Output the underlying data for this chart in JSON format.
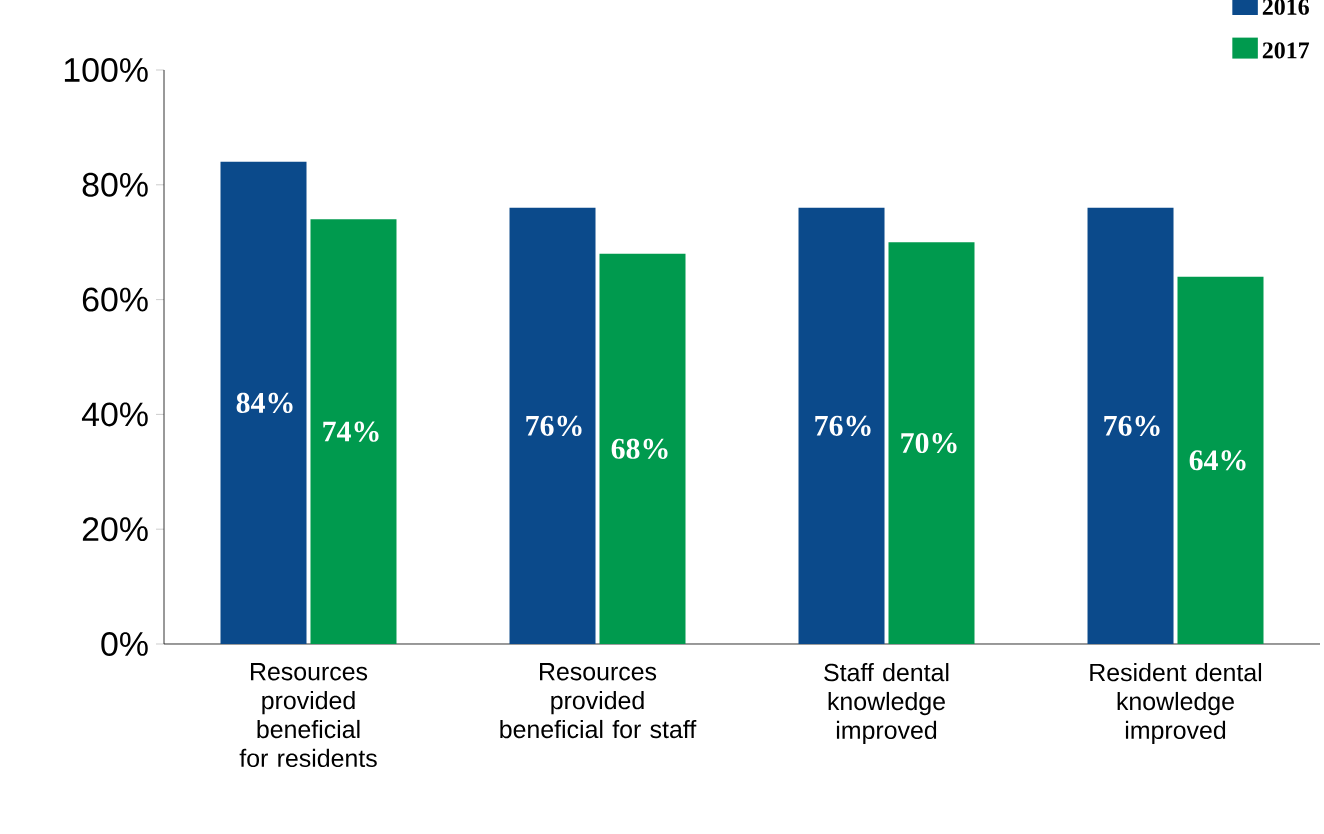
{
  "chart_data": {
    "type": "bar",
    "categories": [
      "Resources provided beneficial for residents",
      "Resources provided beneficial for staff",
      "Staff dental knowledge improved",
      "Resident dental knowledge improved"
    ],
    "series": [
      {
        "name": "2016",
        "color": "#0b4a8b",
        "values": [
          84,
          76,
          76,
          76
        ],
        "value_labels": [
          "84%",
          "76%",
          "76%",
          "76%"
        ]
      },
      {
        "name": "2017",
        "color": "#009a4e",
        "values": [
          74,
          68,
          70,
          64
        ],
        "value_labels": [
          "74%",
          "68%",
          "70%",
          "64%"
        ]
      }
    ],
    "ylim": [
      0,
      100
    ],
    "yticks": [
      {
        "value": 0,
        "label": "0%"
      },
      {
        "value": 20,
        "label": "20%"
      },
      {
        "value": 40,
        "label": "40%"
      },
      {
        "value": 60,
        "label": "60%"
      },
      {
        "value": 80,
        "label": "80%"
      },
      {
        "value": 100,
        "label": "100%"
      }
    ],
    "legend": "top right",
    "grid": false
  }
}
